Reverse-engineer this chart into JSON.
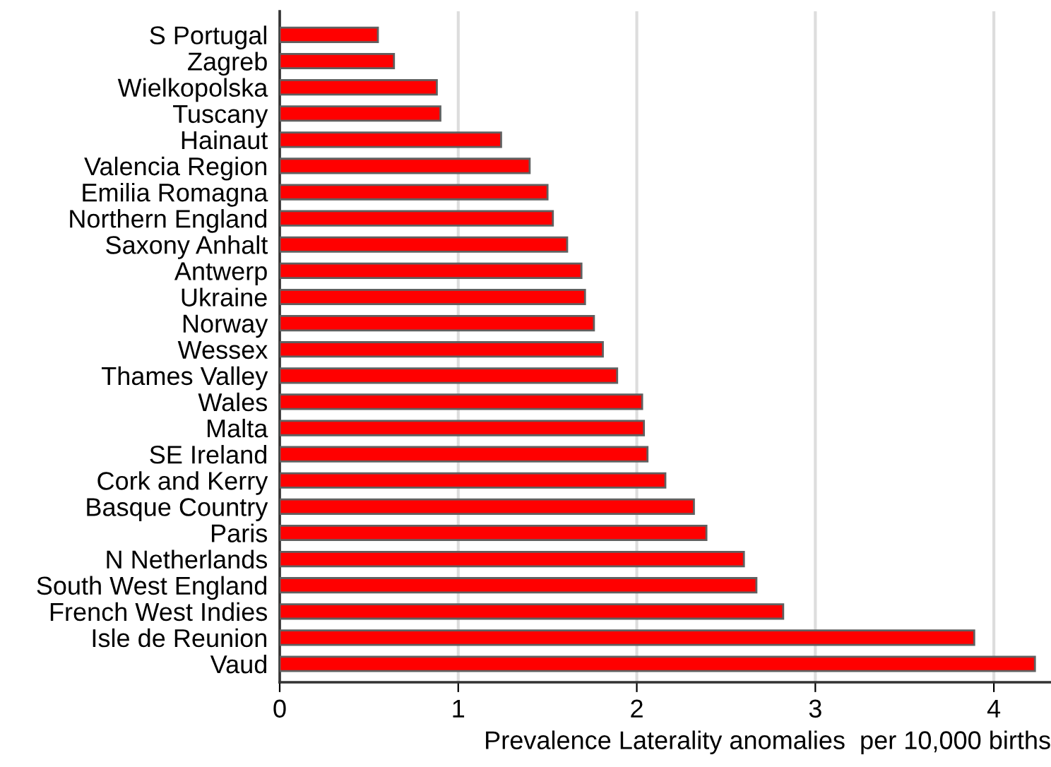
{
  "chart_data": {
    "type": "bar",
    "orientation": "horizontal",
    "xlabel": "Prevalence Laterality anomalies  per 10,000 births",
    "categories": [
      "S Portugal",
      "Zagreb",
      "Wielkopolska",
      "Tuscany",
      "Hainaut",
      "Valencia Region",
      "Emilia Romagna",
      "Northern England",
      "Saxony Anhalt",
      "Antwerp",
      "Ukraine",
      "Norway",
      "Wessex",
      "Thames Valley",
      "Wales",
      "Malta",
      "SE Ireland",
      "Cork and Kerry",
      "Basque Country",
      "Paris",
      "N Netherlands",
      "South West England",
      "French West Indies",
      "Isle de Reunion",
      "Vaud"
    ],
    "values": [
      0.55,
      0.64,
      0.88,
      0.9,
      1.24,
      1.4,
      1.5,
      1.53,
      1.61,
      1.69,
      1.71,
      1.76,
      1.81,
      1.89,
      2.03,
      2.04,
      2.06,
      2.16,
      2.32,
      2.39,
      2.6,
      2.67,
      2.82,
      3.89,
      4.23
    ],
    "color": "#ff0000",
    "xlim": [
      0,
      4.32
    ],
    "xticks": [
      0,
      1,
      2,
      3,
      4
    ],
    "grid": "x"
  }
}
